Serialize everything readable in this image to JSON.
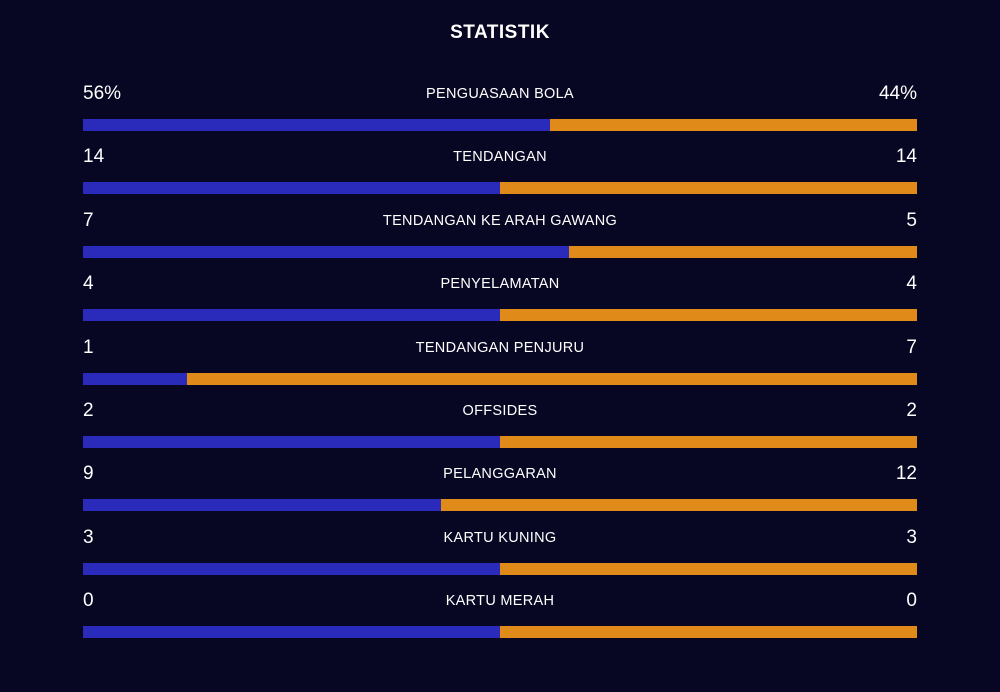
{
  "title": "STATISTIK",
  "colors": {
    "home": "#2b2bbb",
    "away": "#e08a1a",
    "background": "#070723"
  },
  "stats": [
    {
      "label": "PENGUASAAN BOLA",
      "home": "56%",
      "away": "44%",
      "home_share": 0.56
    },
    {
      "label": "TENDANGAN",
      "home": "14",
      "away": "14",
      "home_share": 0.5
    },
    {
      "label": "TENDANGAN KE ARAH GAWANG",
      "home": "7",
      "away": "5",
      "home_share": 0.583
    },
    {
      "label": "PENYELAMATAN",
      "home": "4",
      "away": "4",
      "home_share": 0.5
    },
    {
      "label": "TENDANGAN PENJURU",
      "home": "1",
      "away": "7",
      "home_share": 0.125
    },
    {
      "label": "OFFSIDES",
      "home": "2",
      "away": "2",
      "home_share": 0.5
    },
    {
      "label": "PELANGGARAN",
      "home": "9",
      "away": "12",
      "home_share": 0.429
    },
    {
      "label": "KARTU KUNING",
      "home": "3",
      "away": "3",
      "home_share": 0.5
    },
    {
      "label": "KARTU MERAH",
      "home": "0",
      "away": "0",
      "home_share": 0.5
    }
  ]
}
